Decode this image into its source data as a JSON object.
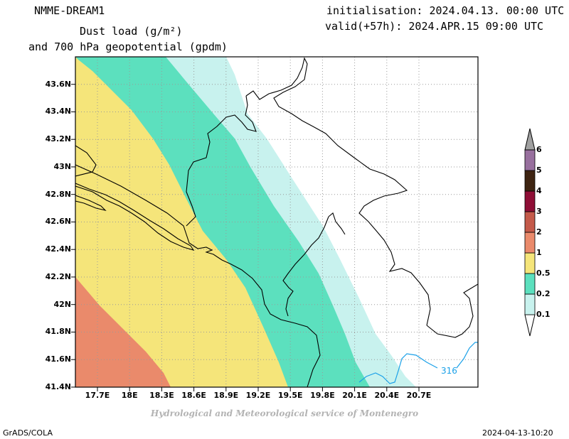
{
  "header": {
    "model": "NMME-DREAM1",
    "title_line1": "Dust load (g/m²)",
    "title_line2": "and 700 hPa geopotential (gpdm)",
    "init": "initialisation: 2024.04.13. 00:00 UTC",
    "valid": "valid(+57h): 2024.APR.15 09:00 UTC"
  },
  "axes": {
    "lat_labels": [
      "43.6N",
      "43.4N",
      "43.2N",
      "43N",
      "42.8N",
      "42.6N",
      "42.4N",
      "42.2N",
      "42N",
      "41.8N",
      "41.6N",
      "41.4N"
    ],
    "lon_labels": [
      "17.7E",
      "18E",
      "18.3E",
      "18.6E",
      "18.9E",
      "19.2E",
      "19.5E",
      "19.8E",
      "20.1E",
      "20.4E",
      "20.7E"
    ]
  },
  "legend": {
    "labels": [
      "0.1",
      "0.2",
      "0.5",
      "1",
      "2",
      "3",
      "4",
      "5",
      "6"
    ],
    "colors": [
      "#c8f2ee",
      "#5ce0be",
      "#f5e57a",
      "#ea8a6b",
      "#c45a4a",
      "#8e0e36",
      "#3e2412",
      "#98709e",
      "#a0a0a0"
    ]
  },
  "contour": {
    "label": "316",
    "color": "#1aa0e8"
  },
  "footer": {
    "credit": "Hydrological and Meteorological service of Montenegro",
    "software": "GrADS/COLA",
    "timestamp": "2024-04-13-10:20"
  }
}
